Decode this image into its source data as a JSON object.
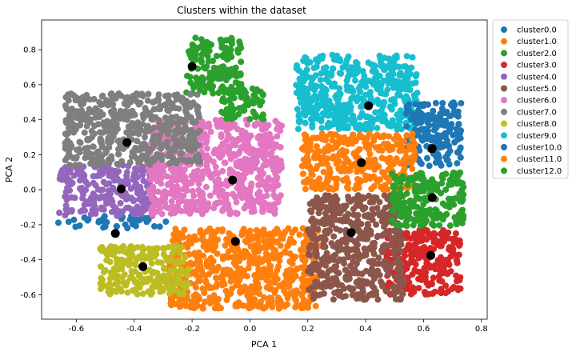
{
  "chart_data": {
    "type": "scatter",
    "title": "Clusters within the dataset",
    "xlabel": "PCA 1",
    "ylabel": "PCA 2",
    "xlim": [
      -0.72,
      0.82
    ],
    "ylim": [
      -0.74,
      0.97
    ],
    "xticks": [
      "-0.6",
      "-0.4",
      "-0.2",
      "0.0",
      "0.2",
      "0.4",
      "0.6",
      "0.8"
    ],
    "xtick_values": [
      -0.6,
      -0.4,
      -0.2,
      0.0,
      0.2,
      0.4,
      0.6,
      0.8
    ],
    "yticks": [
      "-0.6",
      "-0.4",
      "-0.2",
      "0.0",
      "0.2",
      "0.4",
      "0.6",
      "0.8"
    ],
    "ytick_values": [
      -0.6,
      -0.4,
      -0.2,
      0.0,
      0.2,
      0.4,
      0.6,
      0.8
    ],
    "grid": false,
    "legend_position": "outside-right-top",
    "series": [
      {
        "name": "cluster0.0",
        "color": "#1f77b4",
        "regions": [
          [
            -0.67,
            -0.15,
            -0.28,
            -0.22
          ]
        ]
      },
      {
        "name": "cluster1.0",
        "color": "#ff7f0e",
        "regions": [
          [
            -0.28,
            -0.68,
            0.24,
            -0.22
          ]
        ]
      },
      {
        "name": "cluster2.0",
        "color": "#2ca02c",
        "regions": [
          [
            -0.22,
            0.55,
            -0.03,
            0.87
          ]
        ]
      },
      {
        "name": "cluster3.0",
        "color": "#d62728",
        "regions": [
          [
            0.47,
            -0.6,
            0.73,
            -0.23
          ]
        ]
      },
      {
        "name": "cluster4.0",
        "color": "#9467bd",
        "regions": [
          [
            -0.66,
            -0.15,
            -0.33,
            0.14
          ]
        ]
      },
      {
        "name": "cluster5.0",
        "color": "#8c564b",
        "regions": [
          [
            0.2,
            -0.63,
            0.53,
            -0.03
          ]
        ]
      },
      {
        "name": "cluster6.0",
        "color": "#e377c2",
        "regions": [
          [
            -0.35,
            -0.14,
            0.11,
            0.4
          ]
        ]
      },
      {
        "name": "cluster7.0",
        "color": "#7f7f7f",
        "regions": [
          [
            -0.64,
            0.14,
            -0.17,
            0.55
          ]
        ]
      },
      {
        "name": "cluster8.0",
        "color": "#bcbd22",
        "regions": [
          [
            -0.52,
            -0.6,
            -0.21,
            -0.32
          ]
        ]
      },
      {
        "name": "cluster9.0",
        "color": "#17becf",
        "regions": [
          [
            0.16,
            0.34,
            0.58,
            0.77
          ]
        ]
      },
      {
        "name": "cluster10.0",
        "color": "#1f77b4",
        "regions": [
          [
            0.54,
            0.13,
            0.73,
            0.5
          ]
        ]
      },
      {
        "name": "cluster11.0",
        "color": "#ff7f0e",
        "regions": [
          [
            0.18,
            0.0,
            0.57,
            0.32
          ]
        ]
      },
      {
        "name": "cluster12.0",
        "color": "#2ca02c",
        "regions": [
          [
            0.49,
            -0.21,
            0.74,
            0.1
          ],
          [
            -0.1,
            0.4,
            0.05,
            0.58
          ]
        ]
      }
    ],
    "centroids": [
      {
        "x": -0.465,
        "y": -0.25
      },
      {
        "x": -0.05,
        "y": -0.295
      },
      {
        "x": -0.2,
        "y": 0.705
      },
      {
        "x": 0.625,
        "y": -0.375
      },
      {
        "x": -0.445,
        "y": 0.005
      },
      {
        "x": 0.35,
        "y": -0.245
      },
      {
        "x": -0.06,
        "y": 0.055
      },
      {
        "x": -0.425,
        "y": 0.27
      },
      {
        "x": -0.37,
        "y": -0.44
      },
      {
        "x": 0.41,
        "y": 0.48
      },
      {
        "x": 0.63,
        "y": 0.235
      },
      {
        "x": 0.385,
        "y": 0.155
      },
      {
        "x": 0.63,
        "y": -0.045
      }
    ],
    "centroid_color": "#000000"
  }
}
